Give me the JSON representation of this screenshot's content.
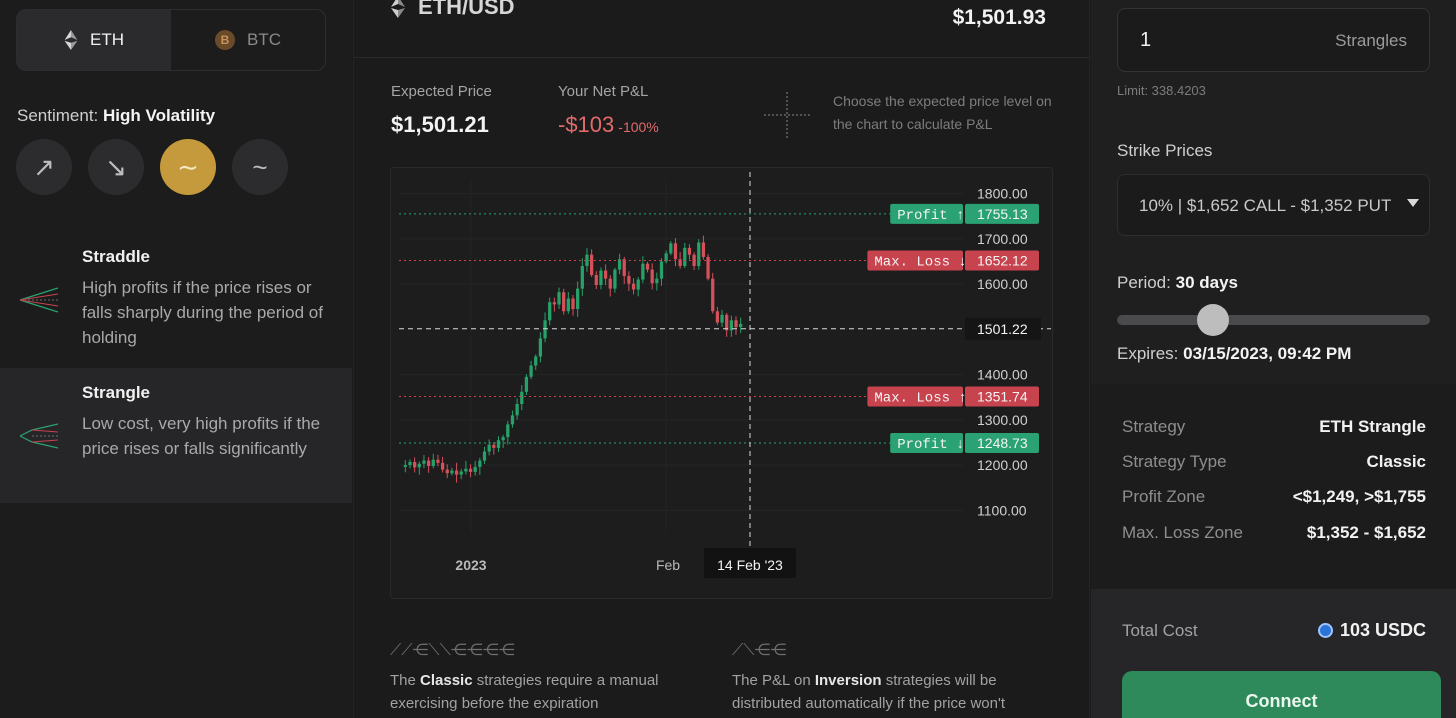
{
  "assets": [
    {
      "label": "ETH",
      "icon": "ethereum-icon",
      "active": true
    },
    {
      "label": "BTC",
      "icon": "bitcoin-icon",
      "active": false
    }
  ],
  "sentiment": {
    "label": "Sentiment:",
    "value": "High Volatility",
    "buttons": [
      {
        "icon": "arrow-up-right-icon",
        "glyph": "↗",
        "active": false
      },
      {
        "icon": "arrow-down-right-icon",
        "glyph": "↘",
        "active": false
      },
      {
        "icon": "wave-high-icon",
        "glyph": "∼",
        "active": true
      },
      {
        "icon": "wave-low-icon",
        "glyph": "~",
        "active": false
      }
    ]
  },
  "strategies": [
    {
      "title": "Straddle",
      "desc": "High profits if the price rises or falls sharply during the period of holding",
      "selected": false
    },
    {
      "title": "Strangle",
      "desc": "Low cost, very high profits if the price rises or falls significantly",
      "selected": true
    }
  ],
  "header": {
    "pair": "ETH/USD",
    "price": "$1,501.93"
  },
  "stats": {
    "expected_label": "Expected Price",
    "expected_value": "$1,501.21",
    "pnl_label": "Your Net P&L",
    "pnl_value": "-$103",
    "pnl_pct": "-100%",
    "hint": "Choose the expected price level on the chart to calculate P&L"
  },
  "chart_data": {
    "type": "candlestick",
    "y_ticks": [
      "1800.00",
      "1700.00",
      "1600.00",
      "1400.00",
      "1300.00",
      "1200.00",
      "1100.00"
    ],
    "ylim": [
      1050,
      1830
    ],
    "x_ticks": [
      "2023",
      "Feb"
    ],
    "crosshair_x_label": "14 Feb '23",
    "crosshair_price": "1501.22",
    "levels": [
      {
        "label": "Profit ↑",
        "value": "1755.13",
        "kind": "profit"
      },
      {
        "label": "Max. Loss ↓",
        "value": "1652.12",
        "kind": "loss"
      },
      {
        "label": "Max. Loss ↑",
        "value": "1351.74",
        "kind": "loss"
      },
      {
        "label": "Profit ↓",
        "value": "1248.73",
        "kind": "profit"
      }
    ],
    "closes": [
      1200,
      1207,
      1195,
      1203,
      1210,
      1198,
      1212,
      1205,
      1190,
      1182,
      1188,
      1179,
      1186,
      1192,
      1185,
      1196,
      1210,
      1230,
      1245,
      1238,
      1255,
      1262,
      1290,
      1310,
      1335,
      1362,
      1395,
      1420,
      1440,
      1480,
      1520,
      1560,
      1555,
      1582,
      1540,
      1568,
      1545,
      1590,
      1640,
      1665,
      1620,
      1598,
      1630,
      1612,
      1590,
      1632,
      1655,
      1618,
      1601,
      1588,
      1610,
      1645,
      1632,
      1602,
      1612,
      1650,
      1668,
      1690,
      1655,
      1640,
      1680,
      1665,
      1640,
      1692,
      1660,
      1612,
      1540,
      1515,
      1532,
      1498,
      1520,
      1505,
      1512
    ],
    "colors": {
      "up": "#26a269",
      "down": "#d6505a",
      "profit": "#2aa273",
      "loss": "#c7434e"
    }
  },
  "notes": {
    "classic_pre": "The",
    "classic_bold": "Classic",
    "classic_post": "strategies require a manual exercising before the expiration",
    "inversion_pre": "The P&L on",
    "inversion_bold": "Inversion",
    "inversion_post": "strategies will be distributed automatically if the price won't"
  },
  "order": {
    "quantity": "1",
    "unit": "Strangles",
    "limit": "Limit: 338.4203",
    "strike_label": "Strike Prices",
    "strike_value": "10%  |  $1,652 CALL - $1,352 PUT",
    "period_label": "Period:",
    "period_value": "30 days",
    "expires_label": "Expires:",
    "expires_value": "03/15/2023, 09:42 PM",
    "period_fraction": 0.3
  },
  "summary": [
    {
      "key": "Strategy",
      "value": "ETH Strangle"
    },
    {
      "key": "Strategy Type",
      "value": "Classic"
    },
    {
      "key": "Profit Zone",
      "value": "<$1,249, >$1,755"
    },
    {
      "key": "Max. Loss Zone",
      "value": "$1,352 - $1,652"
    }
  ],
  "cost": {
    "label": "Total Cost",
    "value": "103 USDC",
    "button": "Connect"
  }
}
